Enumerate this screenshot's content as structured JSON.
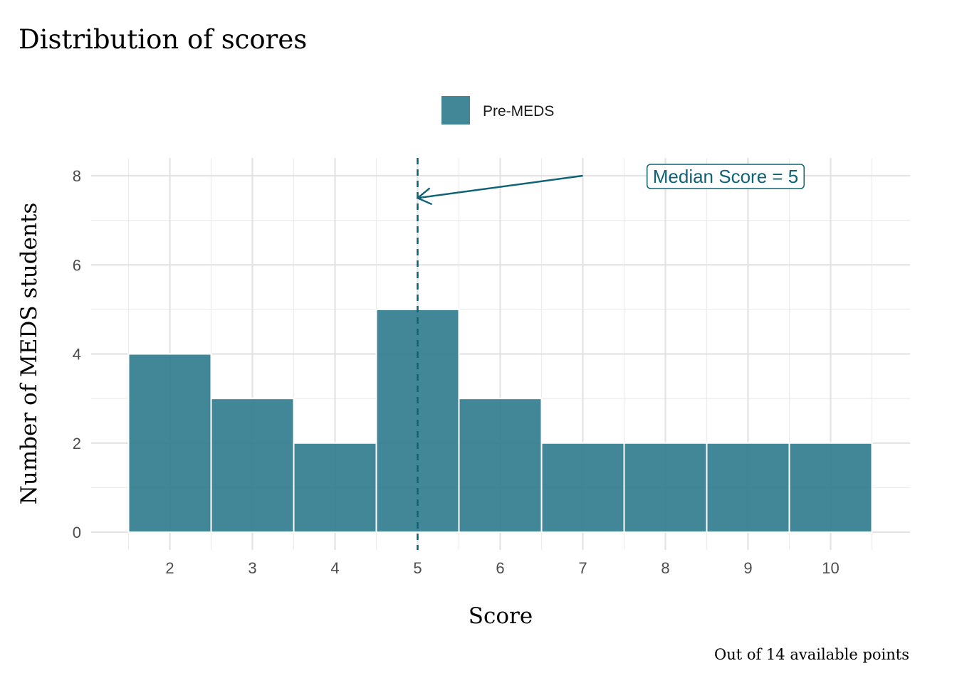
{
  "chart_data": {
    "type": "bar",
    "title": "Distribution of scores",
    "xlabel": "Score",
    "ylabel": "Number of MEDS students",
    "caption": "Out of 14 available points",
    "categories": [
      "2",
      "3",
      "4",
      "5",
      "6",
      "7",
      "8",
      "9",
      "10"
    ],
    "x": [
      2,
      3,
      4,
      5,
      6,
      7,
      8,
      9,
      10
    ],
    "series": [
      {
        "name": "Pre-MEDS",
        "values": [
          4,
          3,
          2,
          5,
          3,
          2,
          2,
          2,
          2
        ],
        "color": "#2c7a8c"
      }
    ],
    "xlim": [
      1.5,
      10.5
    ],
    "ylim": [
      0,
      8
    ],
    "yticks": [
      0,
      2,
      4,
      6,
      8
    ],
    "grid": true,
    "legend_position": "top",
    "median": {
      "value": 5,
      "label": "Median Score = 5",
      "color": "#0f6375",
      "arrow_from": {
        "x": 7,
        "y": 8
      },
      "arrow_to": {
        "x": 5,
        "y": 7.5
      }
    }
  }
}
